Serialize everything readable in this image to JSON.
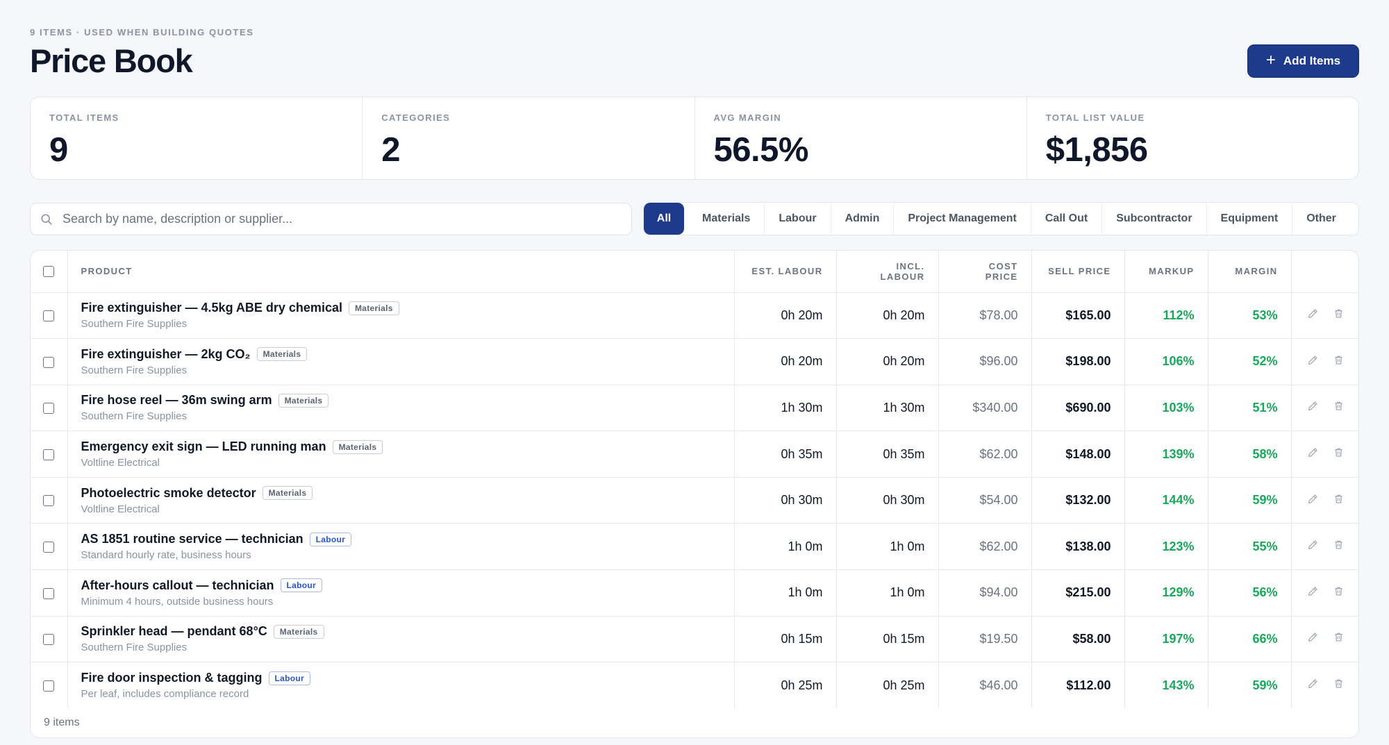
{
  "header": {
    "eyebrow": "9 ITEMS · USED WHEN BUILDING QUOTES",
    "title": "Price Book",
    "add_label": "Add Items"
  },
  "stats": [
    {
      "label": "TOTAL ITEMS",
      "value": "9"
    },
    {
      "label": "CATEGORIES",
      "value": "2"
    },
    {
      "label": "AVG MARGIN",
      "value": "56.5%"
    },
    {
      "label": "TOTAL LIST VALUE",
      "value": "$1,856"
    }
  ],
  "search": {
    "placeholder": "Search by name, description or supplier..."
  },
  "filters": [
    "All",
    "Materials",
    "Labour",
    "Admin",
    "Project Management",
    "Call Out",
    "Subcontractor",
    "Equipment",
    "Other"
  ],
  "table": {
    "columns": {
      "product": "PRODUCT",
      "est_labour": "EST. LABOUR",
      "incl_labour_1": "INCL.",
      "incl_labour_2": "LABOUR",
      "cost_1": "COST",
      "cost_2": "PRICE",
      "sell": "SELL PRICE",
      "markup": "MARKUP",
      "margin": "MARGIN"
    },
    "rows": [
      {
        "name": "Fire extinguisher — 4.5kg ABE dry chemical",
        "category": "Materials",
        "sub": "Southern Fire Supplies",
        "est": "0h 20m",
        "incl": "0h 20m",
        "cost": "$78.00",
        "sell": "$165.00",
        "markup": "112%",
        "margin": "53%"
      },
      {
        "name": "Fire extinguisher — 2kg CO₂",
        "category": "Materials",
        "sub": "Southern Fire Supplies",
        "est": "0h 20m",
        "incl": "0h 20m",
        "cost": "$96.00",
        "sell": "$198.00",
        "markup": "106%",
        "margin": "52%"
      },
      {
        "name": "Fire hose reel — 36m swing arm",
        "category": "Materials",
        "sub": "Southern Fire Supplies",
        "est": "1h 30m",
        "incl": "1h 30m",
        "cost": "$340.00",
        "sell": "$690.00",
        "markup": "103%",
        "margin": "51%"
      },
      {
        "name": "Emergency exit sign — LED running man",
        "category": "Materials",
        "sub": "Voltline Electrical",
        "est": "0h 35m",
        "incl": "0h 35m",
        "cost": "$62.00",
        "sell": "$148.00",
        "markup": "139%",
        "margin": "58%"
      },
      {
        "name": "Photoelectric smoke detector",
        "category": "Materials",
        "sub": "Voltline Electrical",
        "est": "0h 30m",
        "incl": "0h 30m",
        "cost": "$54.00",
        "sell": "$132.00",
        "markup": "144%",
        "margin": "59%"
      },
      {
        "name": "AS 1851 routine service — technician",
        "category": "Labour",
        "sub": "Standard hourly rate, business hours",
        "est": "1h 0m",
        "incl": "1h 0m",
        "cost": "$62.00",
        "sell": "$138.00",
        "markup": "123%",
        "margin": "55%"
      },
      {
        "name": "After-hours callout — technician",
        "category": "Labour",
        "sub": "Minimum 4 hours, outside business hours",
        "est": "1h 0m",
        "incl": "1h 0m",
        "cost": "$94.00",
        "sell": "$215.00",
        "markup": "129%",
        "margin": "56%"
      },
      {
        "name": "Sprinkler head — pendant 68°C",
        "category": "Materials",
        "sub": "Southern Fire Supplies",
        "est": "0h 15m",
        "incl": "0h 15m",
        "cost": "$19.50",
        "sell": "$58.00",
        "markup": "197%",
        "margin": "66%"
      },
      {
        "name": "Fire door inspection & tagging",
        "category": "Labour",
        "sub": "Per leaf, includes compliance record",
        "est": "0h 25m",
        "incl": "0h 25m",
        "cost": "$46.00",
        "sell": "$112.00",
        "markup": "143%",
        "margin": "59%"
      }
    ],
    "footer": "9 items"
  },
  "colors": {
    "accent": "#1e3a8a",
    "positive": "#1aa85b",
    "labour_badge": "#2856c9"
  },
  "icons": {
    "search": "search-icon",
    "add": "plus-icon",
    "edit": "pencil-icon",
    "delete": "trash-icon"
  }
}
